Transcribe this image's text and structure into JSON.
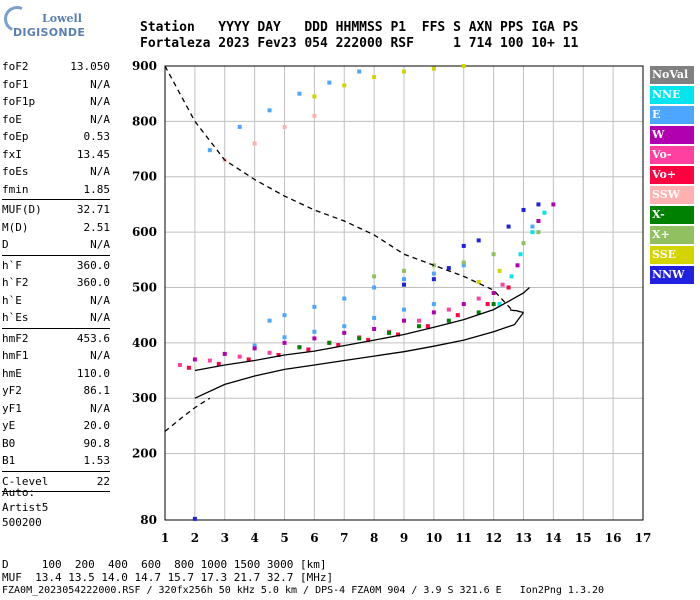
{
  "logo": {
    "line1": "Lowell",
    "line2": "DIGISONDE"
  },
  "header": {
    "line1": "Station   YYYY DAY   DDD HHMMSS P1  FFS S AXN PPS IGA PS",
    "line2": "Fortaleza 2023 Fev23 054 222000 RSF     1 714 100 10+ 11"
  },
  "params": [
    {
      "name": "foF2",
      "value": "13.050"
    },
    {
      "name": "foF1",
      "value": "N/A"
    },
    {
      "name": "foF1p",
      "value": "N/A"
    },
    {
      "name": "foE",
      "value": "N/A"
    },
    {
      "name": "foEp",
      "value": "0.53"
    },
    {
      "name": "fxI",
      "value": "13.45"
    },
    {
      "name": "foEs",
      "value": "N/A"
    },
    {
      "name": "fmin",
      "value": "1.85"
    },
    {
      "sep": true
    },
    {
      "name": "MUF(D)",
      "value": "32.71"
    },
    {
      "name": "M(D)",
      "value": "2.51"
    },
    {
      "name": "D",
      "value": "N/A"
    },
    {
      "sep": true
    },
    {
      "name": "h`F",
      "value": "360.0"
    },
    {
      "name": "h`F2",
      "value": "360.0"
    },
    {
      "name": "h`E",
      "value": "N/A"
    },
    {
      "name": "h`Es",
      "value": "N/A"
    },
    {
      "sep": true
    },
    {
      "name": "hmF2",
      "value": "453.6"
    },
    {
      "name": "hmF1",
      "value": "N/A"
    },
    {
      "name": "hmE",
      "value": "110.0"
    },
    {
      "name": "yF2",
      "value": "86.1"
    },
    {
      "name": "yF1",
      "value": "N/A"
    },
    {
      "name": "yE",
      "value": "20.0"
    },
    {
      "name": "B0",
      "value": "90.8"
    },
    {
      "name": "B1",
      "value": "1.53"
    },
    {
      "sep": true
    },
    {
      "name": "C-level",
      "value": "22"
    },
    {
      "sep": true
    }
  ],
  "auto": {
    "line1": "Auto:",
    "line2": "Artist5",
    "line3": "500200"
  },
  "footer": {
    "line1": "D     100  200  400  600  800 1000 1500 3000 [km]",
    "line2": "MUF  13.4 13.5 14.0 14.7 15.7 17.3 21.7 32.7 [MHz]",
    "line3": "FZA0M_2023054222000.RSF / 320fx256h 50 kHz 5.0 km / DPS-4 FZA0M 904 / 3.9 S 321.6 E   Ion2Png 1.3.20"
  },
  "legend": [
    {
      "label": "NoVal",
      "color": "#808080"
    },
    {
      "label": "NNE",
      "color": "#00e5ee"
    },
    {
      "label": "E",
      "color": "#4da6ff"
    },
    {
      "label": "W",
      "color": "#b000b0"
    },
    {
      "label": "Vo-",
      "color": "#ff40a0"
    },
    {
      "label": "Vo+",
      "color": "#ff0040"
    },
    {
      "label": "SSW",
      "color": "#ffb0b0"
    },
    {
      "label": "X-",
      "color": "#008000"
    },
    {
      "label": "X+",
      "color": "#90c060"
    },
    {
      "label": "SSE",
      "color": "#d4d400"
    },
    {
      "label": "NNW",
      "color": "#2020e0"
    }
  ],
  "chart_data": {
    "type": "scatter",
    "title": "",
    "xlabel": "",
    "ylabel": "",
    "xlim": [
      1,
      17
    ],
    "ylim": [
      80,
      900
    ],
    "x_ticks": [
      1,
      2,
      3,
      4,
      5,
      6,
      7,
      8,
      9,
      10,
      11,
      12,
      13,
      14,
      15,
      16,
      17
    ],
    "y_ticks": [
      80,
      200,
      300,
      400,
      500,
      600,
      700,
      800,
      900
    ],
    "grid": true,
    "legend_placement": "right",
    "series": [
      {
        "name": "E",
        "color": "#4da6ff",
        "style": "points",
        "points": [
          [
            2.5,
            748
          ],
          [
            3.5,
            790
          ],
          [
            4.5,
            820
          ],
          [
            5.5,
            850
          ],
          [
            6.5,
            870
          ],
          [
            7.5,
            890
          ],
          [
            4.5,
            440
          ],
          [
            5,
            450
          ],
          [
            6,
            465
          ],
          [
            7,
            480
          ],
          [
            8,
            500
          ],
          [
            9,
            515
          ],
          [
            10,
            525
          ],
          [
            11,
            540
          ],
          [
            4,
            395
          ],
          [
            5,
            410
          ],
          [
            6,
            420
          ],
          [
            7,
            430
          ],
          [
            8,
            445
          ],
          [
            9,
            460
          ],
          [
            10,
            470
          ],
          [
            13.3,
            610
          ]
        ]
      },
      {
        "name": "NNE",
        "color": "#00e5ee",
        "style": "points",
        "points": [
          [
            12.2,
            470
          ],
          [
            12.6,
            520
          ],
          [
            12.9,
            560
          ],
          [
            13.3,
            600
          ],
          [
            13.7,
            635
          ]
        ]
      },
      {
        "name": "W",
        "color": "#b000b0",
        "style": "points",
        "points": [
          [
            2,
            370
          ],
          [
            3,
            380
          ],
          [
            4,
            390
          ],
          [
            5,
            400
          ],
          [
            6,
            408
          ],
          [
            7,
            418
          ],
          [
            8,
            425
          ],
          [
            9,
            440
          ],
          [
            10,
            455
          ],
          [
            11,
            470
          ],
          [
            12,
            490
          ],
          [
            12.8,
            540
          ],
          [
            13.5,
            620
          ],
          [
            14,
            650
          ]
        ]
      },
      {
        "name": "Vo-",
        "color": "#ff40a0",
        "style": "points",
        "points": [
          [
            1.5,
            360
          ],
          [
            2.5,
            368
          ],
          [
            3.5,
            375
          ],
          [
            4.5,
            382
          ],
          [
            5.5,
            392
          ],
          [
            6.5,
            400
          ],
          [
            7.5,
            410
          ],
          [
            8.5,
            420
          ],
          [
            9.5,
            440
          ],
          [
            10.5,
            460
          ],
          [
            11.5,
            480
          ],
          [
            12.3,
            505
          ]
        ]
      },
      {
        "name": "Vo+",
        "color": "#ff0040",
        "style": "points",
        "points": [
          [
            1.8,
            355
          ],
          [
            2.8,
            362
          ],
          [
            3.8,
            370
          ],
          [
            4.8,
            378
          ],
          [
            5.8,
            388
          ],
          [
            6.8,
            396
          ],
          [
            7.8,
            405
          ],
          [
            8.8,
            415
          ],
          [
            9.8,
            430
          ],
          [
            10.8,
            450
          ],
          [
            11.8,
            470
          ],
          [
            12.5,
            500
          ]
        ]
      },
      {
        "name": "SSW",
        "color": "#ffb0b0",
        "style": "points",
        "points": [
          [
            3,
            730
          ],
          [
            4,
            760
          ],
          [
            5,
            790
          ],
          [
            6,
            810
          ]
        ]
      },
      {
        "name": "X-",
        "color": "#008000",
        "style": "points",
        "points": [
          [
            5.5,
            392
          ],
          [
            6.5,
            400
          ],
          [
            7.5,
            408
          ],
          [
            8.5,
            418
          ],
          [
            9.5,
            430
          ],
          [
            10.5,
            440
          ],
          [
            11.5,
            455
          ],
          [
            12,
            470
          ]
        ]
      },
      {
        "name": "X+",
        "color": "#90c060",
        "style": "points",
        "points": [
          [
            8,
            520
          ],
          [
            9,
            530
          ],
          [
            10,
            540
          ],
          [
            11,
            545
          ],
          [
            12,
            560
          ],
          [
            13,
            580
          ],
          [
            13.5,
            600
          ]
        ]
      },
      {
        "name": "SSE",
        "color": "#d4d400",
        "style": "points",
        "points": [
          [
            6,
            845
          ],
          [
            7,
            865
          ],
          [
            8,
            880
          ],
          [
            9,
            890
          ],
          [
            10,
            895
          ],
          [
            11,
            900
          ],
          [
            11.5,
            510
          ],
          [
            12.2,
            530
          ]
        ]
      },
      {
        "name": "NNW",
        "color": "#2020e0",
        "style": "points",
        "points": [
          [
            2,
            82
          ],
          [
            9,
            505
          ],
          [
            10,
            515
          ],
          [
            10.5,
            535
          ],
          [
            11,
            575
          ],
          [
            11.5,
            585
          ],
          [
            12.5,
            610
          ],
          [
            13,
            640
          ],
          [
            13.5,
            650
          ]
        ]
      },
      {
        "name": "profile",
        "color": "#000000",
        "style": "solid",
        "points": [
          [
            2,
            350
          ],
          [
            3,
            360
          ],
          [
            4,
            368
          ],
          [
            5,
            378
          ],
          [
            6,
            385
          ],
          [
            7,
            395
          ],
          [
            8,
            405
          ],
          [
            9,
            415
          ],
          [
            10,
            428
          ],
          [
            11,
            442
          ],
          [
            12,
            460
          ],
          [
            12.5,
            475
          ],
          [
            13,
            490
          ],
          [
            13.2,
            500
          ]
        ]
      },
      {
        "name": "trace",
        "color": "#000000",
        "style": "solid-lower",
        "points": [
          [
            2,
            300
          ],
          [
            3,
            325
          ],
          [
            4,
            340
          ],
          [
            5,
            352
          ],
          [
            6,
            360
          ],
          [
            7,
            368
          ],
          [
            8,
            376
          ],
          [
            9,
            384
          ],
          [
            10,
            394
          ],
          [
            11,
            405
          ],
          [
            12,
            420
          ],
          [
            12.7,
            433
          ],
          [
            13,
            455
          ]
        ]
      },
      {
        "name": "muf",
        "color": "#000000",
        "style": "dashed",
        "points": [
          [
            1,
            900
          ],
          [
            2,
            800
          ],
          [
            3,
            730
          ],
          [
            4,
            695
          ],
          [
            5,
            665
          ],
          [
            6,
            640
          ],
          [
            7,
            620
          ],
          [
            8,
            595
          ],
          [
            9,
            560
          ],
          [
            10,
            540
          ],
          [
            11,
            520
          ],
          [
            12,
            495
          ],
          [
            12.6,
            460
          ],
          [
            13,
            455
          ],
          [
            12.5,
            460
          ]
        ]
      },
      {
        "name": "lower-dash",
        "color": "#000000",
        "style": "dashed",
        "points": [
          [
            1,
            240
          ],
          [
            1.5,
            262
          ],
          [
            2,
            283
          ],
          [
            2.5,
            300
          ]
        ]
      }
    ]
  }
}
